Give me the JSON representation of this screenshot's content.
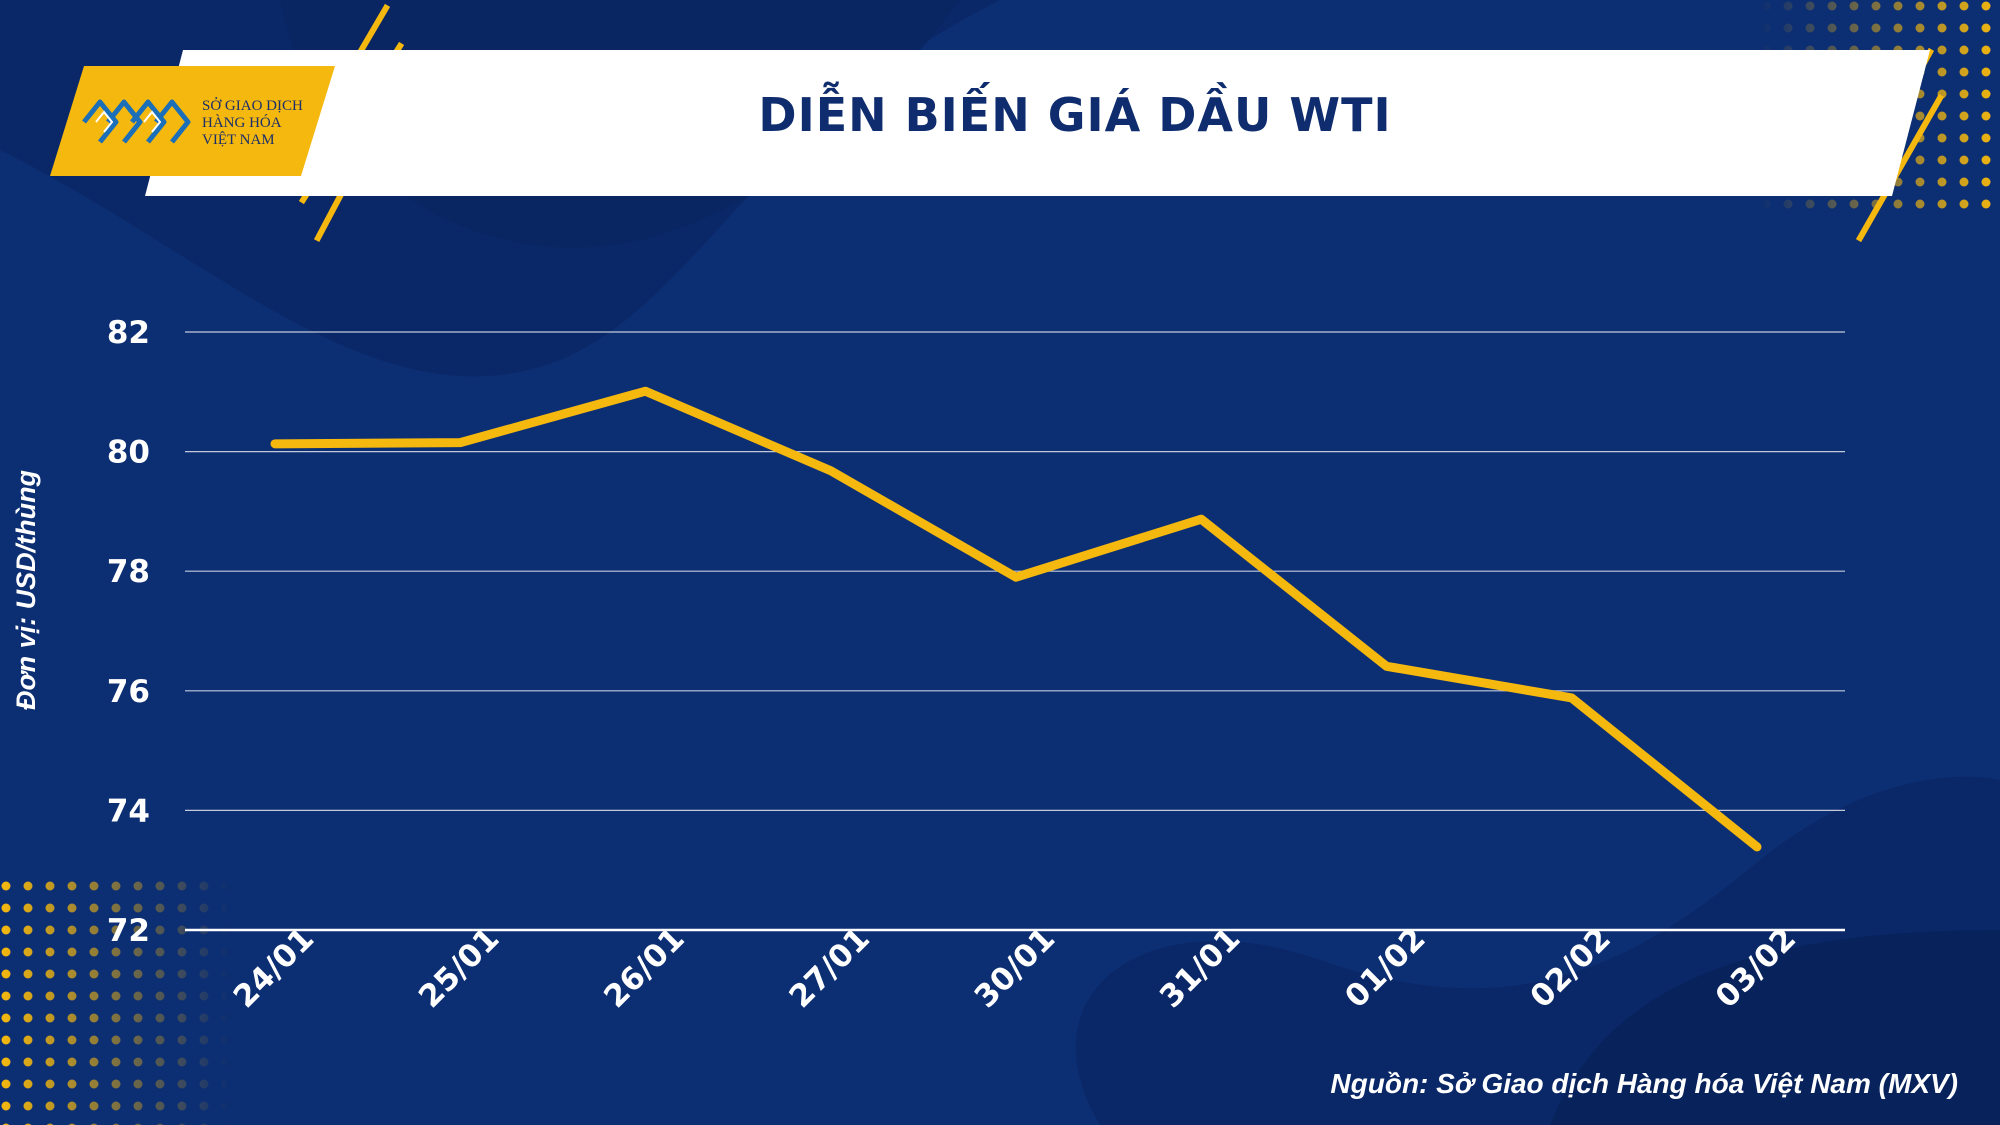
{
  "header": {
    "logo_lines": [
      "SỞ GIAO DỊCH",
      "HÀNG HÓA",
      "VIỆT NAM"
    ],
    "title": "DIỄN BIẾN GIÁ DẦU WTI"
  },
  "source": "Nguồn: Sở Giao dịch Hàng hóa Việt Nam (MXV)",
  "colors": {
    "background": "#0c2e72",
    "line": "#f5b80e",
    "accent": "#f5b80e",
    "text": "#ffffff"
  },
  "chart_data": {
    "type": "line",
    "categories": [
      "24/01",
      "25/01",
      "26/01",
      "27/01",
      "30/01",
      "31/01",
      "01/02",
      "02/02",
      "03/02"
    ],
    "series": [
      {
        "values": [
          80.13,
          80.15,
          81.01,
          79.68,
          77.9,
          78.87,
          76.41,
          75.88,
          73.39
        ]
      }
    ],
    "ylabel": "Đơn vị: USD/thùng",
    "ylim": [
      72,
      82
    ],
    "yticks": [
      72,
      74,
      76,
      78,
      80,
      82
    ],
    "grid": true,
    "legend": "none"
  }
}
